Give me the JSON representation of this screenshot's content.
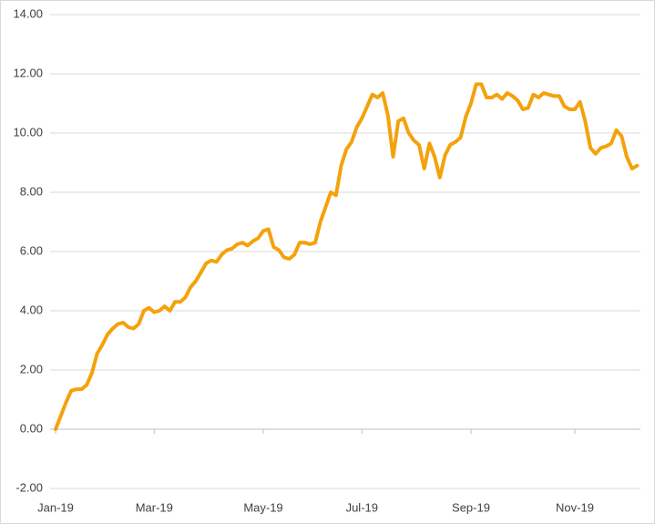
{
  "chart_data": {
    "type": "line",
    "categories": [
      "Jan-19",
      null,
      null,
      null,
      null,
      null,
      null,
      null,
      null,
      null,
      null,
      null,
      null,
      null,
      null,
      null,
      null,
      null,
      null,
      "Mar-19",
      null,
      null,
      null,
      null,
      null,
      null,
      null,
      null,
      null,
      null,
      null,
      null,
      null,
      null,
      null,
      null,
      null,
      null,
      null,
      null,
      "May-19",
      null,
      null,
      null,
      null,
      null,
      null,
      null,
      null,
      null,
      null,
      null,
      null,
      null,
      null,
      null,
      null,
      null,
      null,
      "Jul-19",
      null,
      null,
      null,
      null,
      null,
      null,
      null,
      null,
      null,
      null,
      null,
      null,
      null,
      null,
      null,
      null,
      null,
      null,
      null,
      null,
      "Sep-19",
      null,
      null,
      null,
      null,
      null,
      null,
      null,
      null,
      null,
      null,
      null,
      null,
      null,
      null,
      null,
      null,
      null,
      null,
      null,
      "Nov-19",
      null,
      null,
      null,
      null,
      null,
      null,
      null,
      null,
      null,
      null,
      null,
      null
    ],
    "values": [
      0.0,
      0.45,
      0.9,
      1.3,
      1.35,
      1.35,
      1.5,
      1.9,
      2.55,
      2.85,
      3.2,
      3.4,
      3.55,
      3.6,
      3.45,
      3.4,
      3.55,
      4.0,
      4.1,
      3.95,
      4.0,
      4.15,
      4.0,
      4.3,
      4.3,
      4.45,
      4.8,
      5.0,
      5.3,
      5.6,
      5.7,
      5.65,
      5.9,
      6.05,
      6.1,
      6.25,
      6.3,
      6.2,
      6.35,
      6.45,
      6.7,
      6.75,
      6.15,
      6.05,
      5.8,
      5.75,
      5.9,
      6.3,
      6.3,
      6.25,
      6.3,
      7.0,
      7.5,
      8.0,
      7.9,
      8.9,
      9.45,
      9.7,
      10.2,
      10.5,
      10.9,
      11.3,
      11.2,
      11.35,
      10.6,
      9.2,
      10.4,
      10.5,
      10.0,
      9.75,
      9.6,
      8.8,
      9.65,
      9.2,
      8.5,
      9.25,
      9.6,
      9.7,
      9.85,
      10.55,
      11.0,
      11.65,
      11.65,
      11.2,
      11.2,
      11.3,
      11.15,
      11.35,
      11.25,
      11.1,
      10.8,
      10.85,
      11.3,
      11.2,
      11.35,
      11.3,
      11.25,
      11.25,
      10.9,
      10.8,
      10.8,
      11.05,
      10.4,
      9.5,
      9.3,
      9.5,
      9.55,
      9.65,
      10.1,
      9.9,
      9.2,
      8.8,
      8.9
    ],
    "color": "#f4a20c",
    "ylim": [
      -2,
      14
    ],
    "yticks": [
      {
        "value": -2,
        "label": "-2.00"
      },
      {
        "value": 0,
        "label": "0.00"
      },
      {
        "value": 2,
        "label": "2.00"
      },
      {
        "value": 4,
        "label": "4.00"
      },
      {
        "value": 6,
        "label": "6.00"
      },
      {
        "value": 8,
        "label": "8.00"
      },
      {
        "value": 10,
        "label": "10.00"
      },
      {
        "value": 12,
        "label": "12.00"
      },
      {
        "value": 14,
        "label": "14.00"
      }
    ],
    "grid": true
  }
}
